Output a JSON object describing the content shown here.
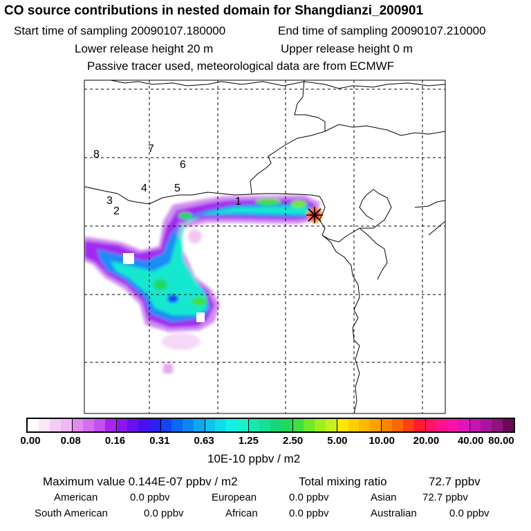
{
  "header": {
    "title": "CO  source contributions in nested domain for Shangdianzi_200901",
    "start_label": "Start time of sampling 20090107.180000",
    "end_label": "End time of sampling 20090107.210000",
    "lower_label": "Lower release height   20 m",
    "upper_label": "Upper release height    0 m",
    "note": "Passive tracer used, meteorological data are from ECMWF"
  },
  "map": {
    "station_marker": "x-star-icon",
    "region_numbers": [
      "1",
      "2",
      "3",
      "4",
      "5",
      "6",
      "7",
      "8"
    ]
  },
  "colorbar": {
    "ticks": [
      "0.00",
      "0.08",
      "0.16",
      "0.31",
      "0.63",
      "1.25",
      "2.50",
      "5.00",
      "10.00",
      "20.00",
      "40.00",
      "80.00"
    ],
    "units": "10E-10 ppbv / m2",
    "colors": [
      "#ffffff",
      "#fbe6fb",
      "#f4cdf4",
      "#efb8f2",
      "#e38aef",
      "#d46ff0",
      "#c350f2",
      "#aa22ee",
      "#8a18ee",
      "#6a10ee",
      "#4a10f0",
      "#2a20f5",
      "#1444f8",
      "#0c66f8",
      "#0c86f6",
      "#10a6f2",
      "#10c2ee",
      "#10dcec",
      "#14f0e6",
      "#18f2cc",
      "#18e8b0",
      "#18de94",
      "#18d678",
      "#20d85c",
      "#40e040",
      "#70ea28",
      "#a0f020",
      "#c8f020",
      "#ffe600",
      "#ffd000",
      "#ffb800",
      "#ffa000",
      "#ff8400",
      "#ff6600",
      "#ff4010",
      "#ff1a30",
      "#ff1468",
      "#ff148e",
      "#f414a8",
      "#e014b8",
      "#c414b4",
      "#aa149c",
      "#90127e",
      "#6a0a56"
    ]
  },
  "summary": {
    "max_value": "Maximum value  0.144E-07 ppbv / m2",
    "total_mixing": "Total mixing ratio",
    "total_value": "72.7 ppbv",
    "american_label": "American",
    "american_value": "0.0 ppbv",
    "european_label": "European",
    "european_value": "0.0 ppbv",
    "asian_label": "Asian",
    "asian_value": "72.7 ppbv",
    "south_american_label": "South American",
    "south_american_value": "0.0 ppbv",
    "african_label": "African",
    "african_value": "0.0 ppbv",
    "australian_label": "Australian",
    "australian_value": "0.0 ppbv"
  }
}
